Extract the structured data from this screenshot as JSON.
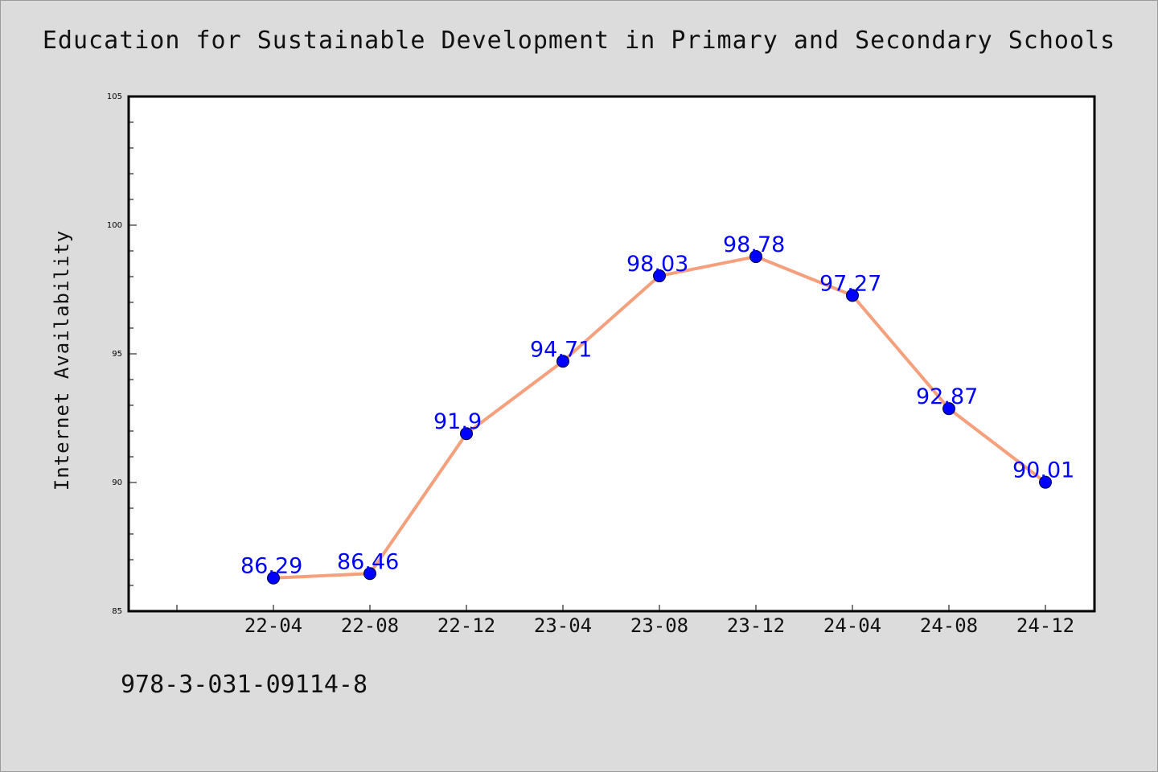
{
  "page": {
    "background": "#dcdcdc",
    "footnote": "978-3-031-09114-8"
  },
  "chart_data": {
    "type": "line",
    "title": "Education for Sustainable Development in Primary and Secondary Schools",
    "xlabel": "",
    "ylabel": "Internet Availability",
    "categories": [
      "22-04",
      "22-08",
      "22-12",
      "23-04",
      "23-08",
      "23-12",
      "24-04",
      "24-08",
      "24-12"
    ],
    "series": [
      {
        "values": [
          86.29,
          86.46,
          91.9,
          94.71,
          98.03,
          98.78,
          97.27,
          92.87,
          90.01
        ],
        "line_color": "#f4a07c",
        "marker_color": "#0000ff"
      }
    ],
    "data_labels": [
      "86.29",
      "86.46",
      "91.9",
      "94.71",
      "98.03",
      "98.78",
      "97.27",
      "92.87",
      "90.01"
    ],
    "label_color": "#0000ff",
    "ylim": [
      85,
      105
    ],
    "yticks": [
      "85",
      "90",
      "95",
      "100",
      "105"
    ],
    "grid": false,
    "legend": "none"
  }
}
